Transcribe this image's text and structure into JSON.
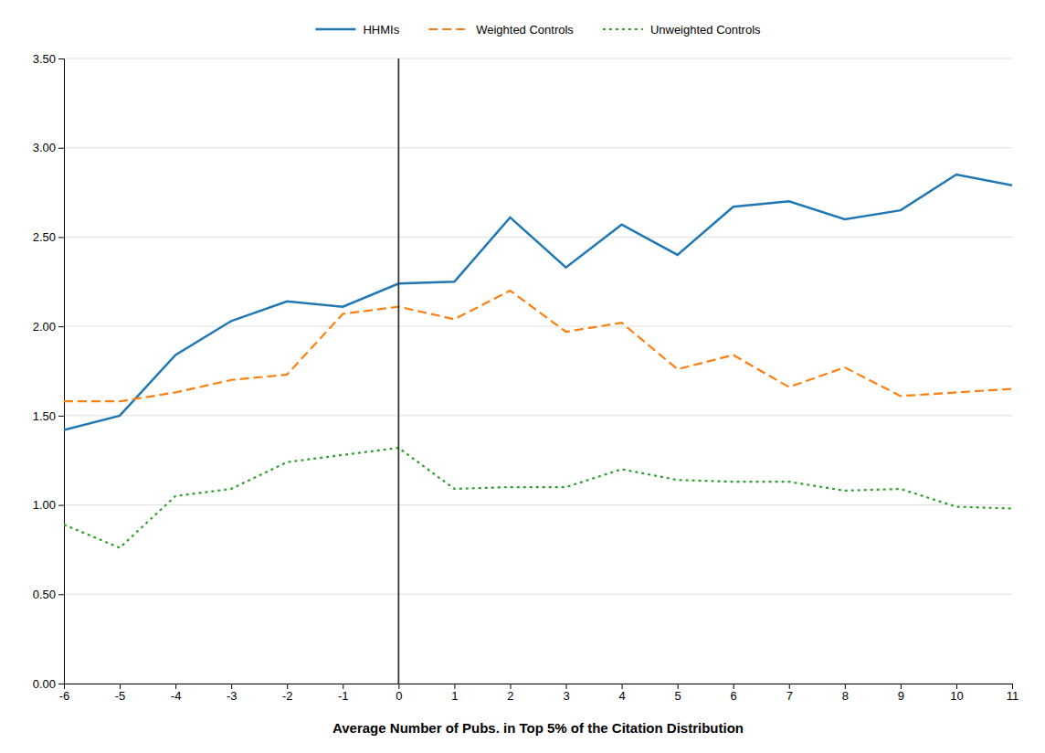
{
  "chart_data": {
    "type": "line",
    "xlabel": "Average Number of Pubs. in Top 5% of the Citation Distribution",
    "x": [
      -6,
      -5,
      -4,
      -3,
      -2,
      -1,
      0,
      1,
      2,
      3,
      4,
      5,
      6,
      7,
      8,
      9,
      10,
      11
    ],
    "series": [
      {
        "name": "HHMIs",
        "line_style": "solid",
        "values": [
          1.42,
          1.5,
          1.84,
          2.03,
          2.14,
          2.11,
          2.24,
          2.25,
          2.61,
          2.33,
          2.57,
          2.4,
          2.67,
          2.7,
          2.6,
          2.65,
          2.85,
          2.79
        ]
      },
      {
        "name": "Weighted Controls",
        "line_style": "dashed",
        "values": [
          1.58,
          1.58,
          1.63,
          1.7,
          1.73,
          2.07,
          2.11,
          2.04,
          2.2,
          1.97,
          2.02,
          1.76,
          1.84,
          1.66,
          1.77,
          1.61,
          1.63,
          1.65
        ]
      },
      {
        "name": "Unweighted Controls",
        "line_style": "dotted",
        "values": [
          0.89,
          0.76,
          1.05,
          1.09,
          1.24,
          1.28,
          1.32,
          1.09,
          1.1,
          1.1,
          1.2,
          1.14,
          1.13,
          1.13,
          1.08,
          1.09,
          0.99,
          0.98
        ]
      }
    ],
    "vline_x": 0,
    "xlim": [
      -6,
      11
    ],
    "xticks": [
      -6,
      -5,
      -4,
      -3,
      -2,
      -1,
      0,
      1,
      2,
      3,
      4,
      5,
      6,
      7,
      8,
      9,
      10,
      11
    ],
    "ylim": [
      0.0,
      3.5
    ],
    "yticks": [
      {
        "value": 0.0,
        "label": "0.00"
      },
      {
        "value": 0.5,
        "label": "0.50"
      },
      {
        "value": 1.0,
        "label": "1.00"
      },
      {
        "value": 1.5,
        "label": "1.50"
      },
      {
        "value": 2.0,
        "label": "2.00"
      },
      {
        "value": 2.5,
        "label": "2.50"
      },
      {
        "value": 3.0,
        "label": "3.00"
      },
      {
        "value": 3.5,
        "label": "3.50"
      }
    ],
    "grid": true,
    "legend": "top"
  }
}
